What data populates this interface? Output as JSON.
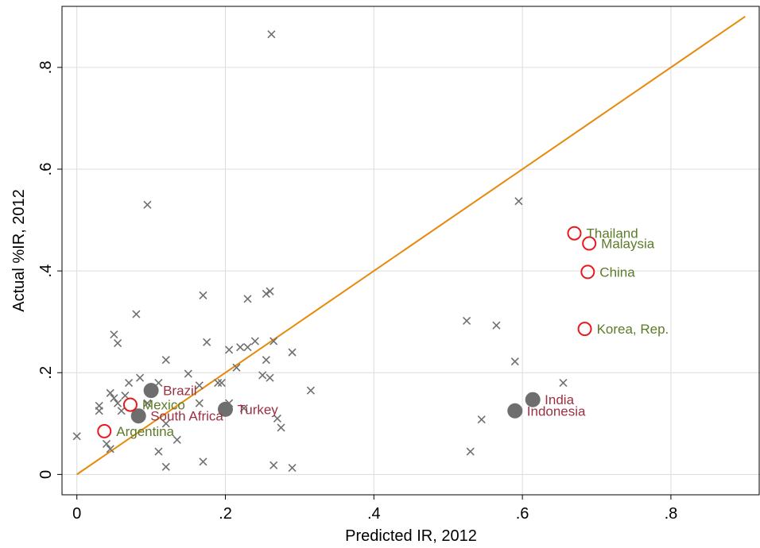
{
  "colors": {
    "frame": "#000000",
    "grid": "#dcdcdc",
    "fit_line": "#e8890c",
    "other": "#707070",
    "hollow": "#e8191e",
    "filled": "#6e6e6e",
    "label_green": "#5c7a29",
    "label_red": "#9a3040"
  },
  "chart_data": {
    "type": "scatter",
    "xlabel": "Predicted IR, 2012",
    "ylabel": "Actual %IR, 2012",
    "xlim": [
      -0.02,
      0.92
    ],
    "ylim": [
      -0.04,
      0.92
    ],
    "xticks": [
      0,
      0.2,
      0.4,
      0.6,
      0.8
    ],
    "xtick_labels": [
      "0",
      ".2",
      ".4",
      ".6",
      ".8"
    ],
    "yticks": [
      0,
      0.2,
      0.4,
      0.6,
      0.8
    ],
    "ytick_labels": [
      "0",
      ".2",
      ".4",
      ".6",
      ".8"
    ],
    "grid": "vertical and horizontal at ticks",
    "reference_line": {
      "x": [
        0,
        0.9
      ],
      "y": [
        0,
        0.9
      ]
    },
    "series": [
      {
        "marker": "x",
        "points": [
          [
            0.0,
            0.075
          ],
          [
            0.03,
            0.135
          ],
          [
            0.03,
            0.125
          ],
          [
            0.04,
            0.06
          ],
          [
            0.045,
            0.16
          ],
          [
            0.045,
            0.05
          ],
          [
            0.05,
            0.275
          ],
          [
            0.05,
            0.15
          ],
          [
            0.055,
            0.258
          ],
          [
            0.055,
            0.14
          ],
          [
            0.06,
            0.125
          ],
          [
            0.065,
            0.155
          ],
          [
            0.07,
            0.18
          ],
          [
            0.08,
            0.315
          ],
          [
            0.085,
            0.19
          ],
          [
            0.095,
            0.53
          ],
          [
            0.095,
            0.14
          ],
          [
            0.11,
            0.18
          ],
          [
            0.11,
            0.045
          ],
          [
            0.12,
            0.225
          ],
          [
            0.12,
            0.015
          ],
          [
            0.12,
            0.1
          ],
          [
            0.135,
            0.068
          ],
          [
            0.15,
            0.198
          ],
          [
            0.165,
            0.175
          ],
          [
            0.165,
            0.14
          ],
          [
            0.17,
            0.352
          ],
          [
            0.17,
            0.025
          ],
          [
            0.175,
            0.26
          ],
          [
            0.19,
            0.18
          ],
          [
            0.195,
            0.18
          ],
          [
            0.205,
            0.245
          ],
          [
            0.205,
            0.14
          ],
          [
            0.215,
            0.21
          ],
          [
            0.22,
            0.25
          ],
          [
            0.225,
            0.13
          ],
          [
            0.23,
            0.345
          ],
          [
            0.23,
            0.25
          ],
          [
            0.24,
            0.262
          ],
          [
            0.25,
            0.195
          ],
          [
            0.255,
            0.355
          ],
          [
            0.255,
            0.225
          ],
          [
            0.26,
            0.36
          ],
          [
            0.26,
            0.19
          ],
          [
            0.262,
            0.865
          ],
          [
            0.265,
            0.262
          ],
          [
            0.265,
            0.018
          ],
          [
            0.27,
            0.11
          ],
          [
            0.275,
            0.092
          ],
          [
            0.29,
            0.24
          ],
          [
            0.29,
            0.013
          ],
          [
            0.315,
            0.165
          ],
          [
            0.525,
            0.302
          ],
          [
            0.53,
            0.045
          ],
          [
            0.545,
            0.108
          ],
          [
            0.565,
            0.293
          ],
          [
            0.59,
            0.222
          ],
          [
            0.595,
            0.537
          ],
          [
            0.655,
            0.18
          ]
        ]
      },
      {
        "marker": "hollow-circle",
        "points": [
          {
            "x": 0.037,
            "y": 0.085,
            "label": "Argentina"
          },
          {
            "x": 0.072,
            "y": 0.137,
            "label": "Mexico"
          },
          {
            "x": 0.67,
            "y": 0.474,
            "label": "Thailand"
          },
          {
            "x": 0.69,
            "y": 0.454,
            "label": "Malaysia"
          },
          {
            "x": 0.688,
            "y": 0.398,
            "label": "China"
          },
          {
            "x": 0.684,
            "y": 0.286,
            "label": "Korea, Rep."
          }
        ]
      },
      {
        "marker": "filled-circle",
        "points": [
          {
            "x": 0.1,
            "y": 0.165,
            "label": "Brazil"
          },
          {
            "x": 0.083,
            "y": 0.115,
            "label": "South Africa"
          },
          {
            "x": 0.2,
            "y": 0.128,
            "label": "Turkey"
          },
          {
            "x": 0.614,
            "y": 0.147,
            "label": "India"
          },
          {
            "x": 0.59,
            "y": 0.125,
            "label": "Indonesia"
          }
        ]
      }
    ]
  }
}
